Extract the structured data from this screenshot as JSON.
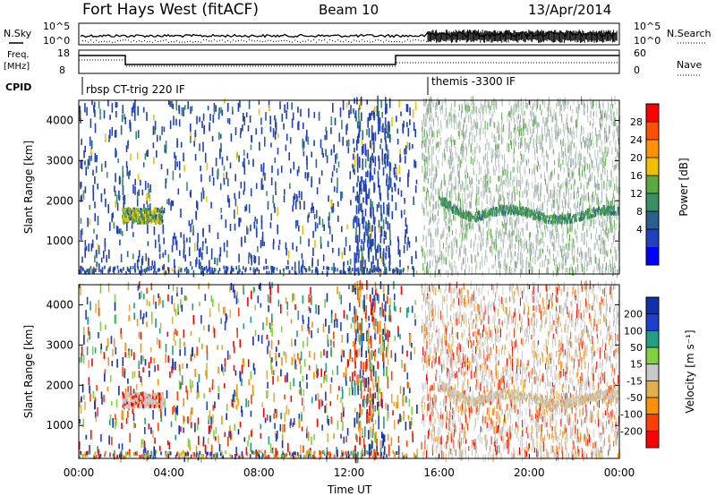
{
  "header": {
    "station": "Fort Hays West (fitACF)",
    "beam": "Beam 10",
    "date": "13/Apr/2014"
  },
  "noise_panel": {
    "left_label": "N.Sky",
    "right_label": "N.Search",
    "left_ticks": [
      "10^5",
      "10^0"
    ],
    "right_ticks": [
      "10^5",
      "10^0"
    ]
  },
  "freq_panel": {
    "left_label_1": "Freq.",
    "left_label_2": "[MHz]",
    "right_label": "Nave",
    "left_ticks": [
      "18",
      "8"
    ],
    "right_ticks": [
      "60",
      "0"
    ]
  },
  "cpid": {
    "label": "CPID",
    "mode_1": "rbsp CT-trig 220 IF",
    "mode_2": "themis -3300 IF"
  },
  "chart_data": [
    {
      "type": "heatmap",
      "name": "power",
      "ylabel": "Slant Range [km]",
      "yticks": [
        1000,
        2000,
        3000,
        4000
      ],
      "ylim": [
        180,
        4500
      ],
      "xlim_hours": [
        0,
        24
      ],
      "colorbar_label": "Power [dB]",
      "colorbar_ticks": [
        "4",
        "8",
        "12",
        "16",
        "20",
        "24",
        "28"
      ],
      "colorbar_colors": [
        "#0000ff",
        "#2040c0",
        "#2a6090",
        "#3a9060",
        "#5aaa40",
        "#f0c000",
        "#ff9000",
        "#ff5000",
        "#ff0000"
      ]
    },
    {
      "type": "heatmap",
      "name": "velocity",
      "ylabel": "Slant Range [km]",
      "yticks": [
        1000,
        2000,
        3000,
        4000
      ],
      "ylim": [
        180,
        4500
      ],
      "xlim_hours": [
        0,
        24
      ],
      "colorbar_label": "Velocity [m s⁻¹]",
      "colorbar_ticks": [
        "200",
        "100",
        "50",
        "15",
        "-15",
        "-50",
        "-100",
        "-200"
      ],
      "colorbar_colors": [
        "#1030b0",
        "#2040d0",
        "#20a080",
        "#80d040",
        "#c8c8c8",
        "#e0b050",
        "#ff9000",
        "#ff4000",
        "#ff0000"
      ]
    }
  ],
  "xaxis": {
    "label": "Time UT",
    "ticks": [
      "00:00",
      "04:00",
      "08:00",
      "12:00",
      "16:00",
      "20:00",
      "00:00"
    ]
  }
}
